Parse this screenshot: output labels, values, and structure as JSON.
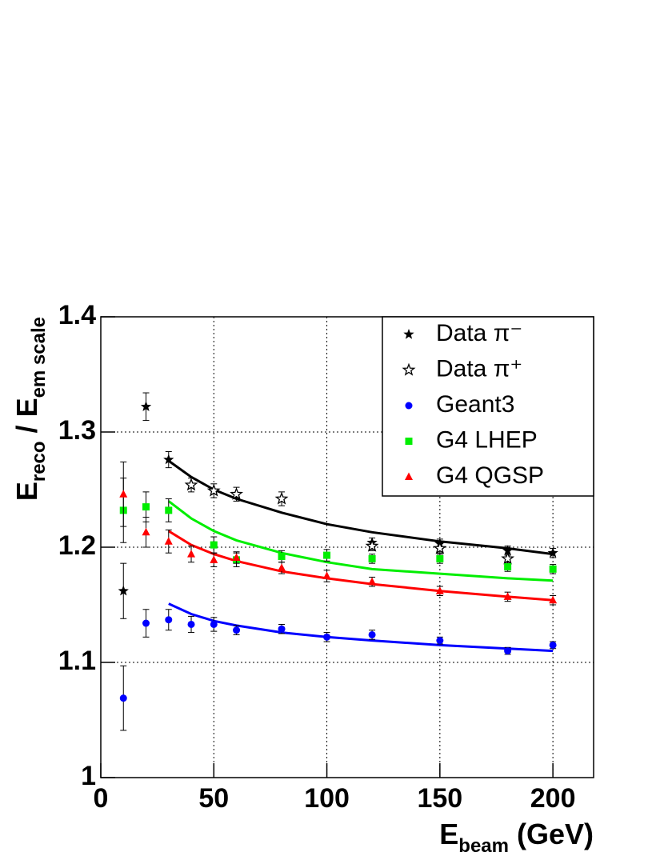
{
  "chart_data": {
    "type": "scatter",
    "xlabel_parts": [
      "E",
      "beam",
      "(GeV)"
    ],
    "ylabel_parts": [
      "E",
      "reco",
      "/ E",
      "em scale"
    ],
    "xlim": [
      0,
      218
    ],
    "ylim": [
      1,
      1.4
    ],
    "xticks": [
      0,
      50,
      100,
      150,
      200
    ],
    "yticks": [
      1,
      1.1,
      1.2,
      1.3,
      1.4
    ],
    "grid": true,
    "legend": "upper right",
    "series": [
      {
        "name": "Data π⁻",
        "color": "#000000",
        "marker": "star",
        "x": [
          10,
          20,
          30,
          120,
          150,
          180,
          200
        ],
        "values": [
          1.162,
          1.322,
          1.276,
          1.204,
          1.203,
          1.197,
          1.195
        ],
        "errors": [
          0.024,
          0.012,
          0.007,
          0.004,
          0.004,
          0.004,
          0.004
        ]
      },
      {
        "name": "Data π⁺",
        "color": "#000000",
        "marker": "star-open",
        "x": [
          40,
          50,
          60,
          80,
          120,
          150,
          180
        ],
        "values": [
          1.254,
          1.249,
          1.246,
          1.242,
          1.201,
          1.199,
          1.19
        ],
        "errors": [
          0.006,
          0.006,
          0.006,
          0.006,
          0.004,
          0.004,
          0.004
        ]
      },
      {
        "name": "Geant3",
        "color": "#0000ff",
        "marker": "circle",
        "x": [
          10,
          20,
          30,
          40,
          50,
          60,
          80,
          100,
          120,
          150,
          180,
          200
        ],
        "values": [
          1.069,
          1.134,
          1.137,
          1.133,
          1.133,
          1.128,
          1.129,
          1.122,
          1.124,
          1.119,
          1.11,
          1.115
        ],
        "errors": [
          0.028,
          0.012,
          0.009,
          0.007,
          0.006,
          0.004,
          0.004,
          0.004,
          0.004,
          0.003,
          0.003,
          0.003
        ]
      },
      {
        "name": "G4 LHEP",
        "color": "#00ee00",
        "marker": "square",
        "x": [
          10,
          20,
          30,
          50,
          60,
          80,
          100,
          120,
          150,
          180,
          200
        ],
        "values": [
          1.232,
          1.235,
          1.232,
          1.202,
          1.189,
          1.192,
          1.193,
          1.19,
          1.19,
          1.183,
          1.181
        ],
        "errors": [
          0.028,
          0.013,
          0.01,
          0.007,
          0.006,
          0.005,
          0.005,
          0.004,
          0.004,
          0.004,
          0.004
        ]
      },
      {
        "name": "G4 QGSP",
        "color": "#ff0000",
        "marker": "triangle",
        "x": [
          10,
          20,
          30,
          40,
          50,
          60,
          80,
          100,
          120,
          150,
          180,
          200
        ],
        "values": [
          1.246,
          1.213,
          1.205,
          1.194,
          1.189,
          1.191,
          1.182,
          1.175,
          1.17,
          1.162,
          1.157,
          1.154
        ],
        "errors": [
          0.028,
          0.013,
          0.01,
          0.007,
          0.006,
          0.005,
          0.005,
          0.005,
          0.004,
          0.004,
          0.004,
          0.004
        ]
      }
    ],
    "fits": [
      {
        "color": "#000000",
        "x": [
          30,
          40,
          50,
          60,
          80,
          100,
          120,
          150,
          180,
          200
        ],
        "values": [
          1.275,
          1.261,
          1.25,
          1.242,
          1.23,
          1.22,
          1.213,
          1.205,
          1.199,
          1.194
        ]
      },
      {
        "color": "#00ee00",
        "x": [
          30,
          40,
          50,
          60,
          80,
          100,
          120,
          150,
          180,
          200
        ],
        "values": [
          1.24,
          1.225,
          1.214,
          1.206,
          1.195,
          1.187,
          1.181,
          1.177,
          1.173,
          1.171
        ]
      },
      {
        "color": "#ff0000",
        "x": [
          30,
          40,
          50,
          60,
          80,
          100,
          120,
          150,
          180,
          200
        ],
        "values": [
          1.214,
          1.202,
          1.194,
          1.188,
          1.179,
          1.173,
          1.168,
          1.162,
          1.157,
          1.154
        ]
      },
      {
        "color": "#0000ff",
        "x": [
          30,
          40,
          50,
          60,
          80,
          100,
          120,
          150,
          180,
          200
        ],
        "values": [
          1.151,
          1.142,
          1.136,
          1.132,
          1.126,
          1.122,
          1.119,
          1.115,
          1.112,
          1.11
        ]
      }
    ]
  }
}
